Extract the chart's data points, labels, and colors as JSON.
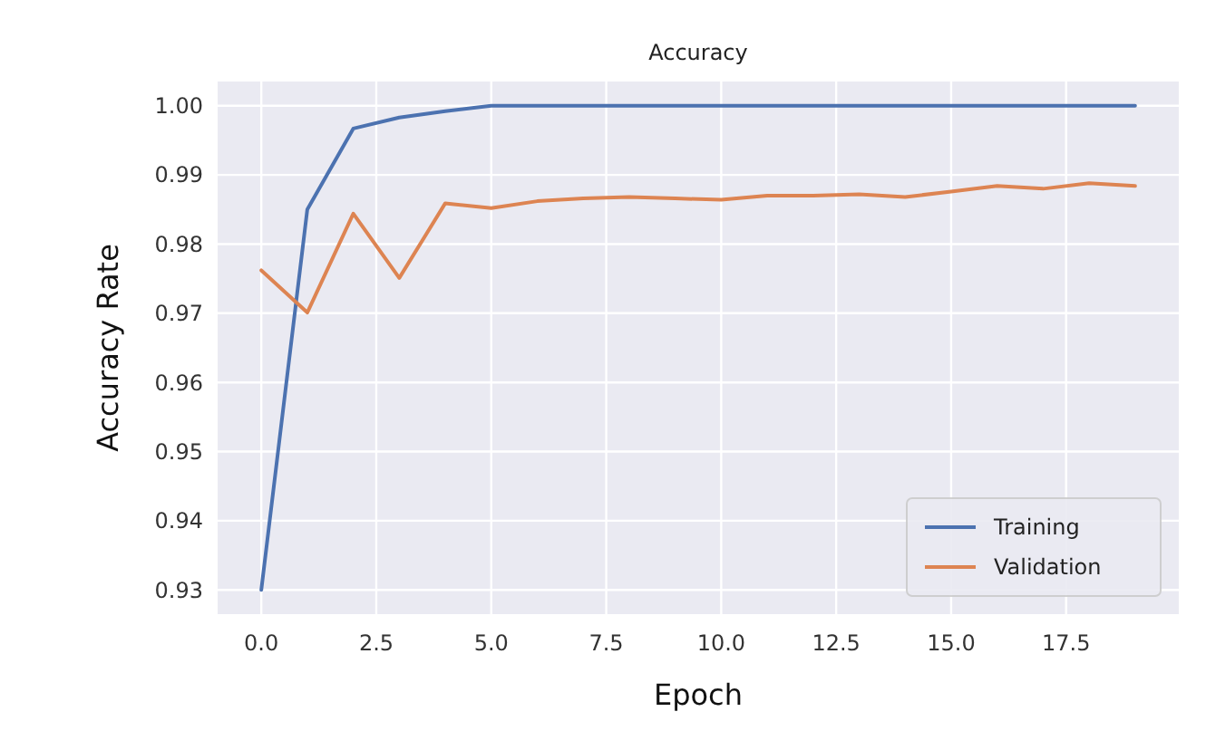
{
  "chart_data": {
    "type": "line",
    "title": "Accuracy",
    "xlabel": "Epoch",
    "ylabel": "Accuracy Rate",
    "x": [
      0,
      1,
      2,
      3,
      4,
      5,
      6,
      7,
      8,
      9,
      10,
      11,
      12,
      13,
      14,
      15,
      16,
      17,
      18,
      19
    ],
    "series": [
      {
        "name": "Training",
        "color": "#4c72b0",
        "values": [
          0.93,
          0.985,
          0.9967,
          0.9983,
          0.9992,
          1.0,
          1.0,
          1.0,
          1.0,
          1.0,
          1.0,
          1.0,
          1.0,
          1.0,
          1.0,
          1.0,
          1.0,
          1.0,
          1.0,
          1.0
        ]
      },
      {
        "name": "Validation",
        "color": "#dd8452",
        "values": [
          0.9762,
          0.9701,
          0.9844,
          0.9751,
          0.9859,
          0.9852,
          0.9862,
          0.9866,
          0.9868,
          0.9866,
          0.9864,
          0.987,
          0.987,
          0.9872,
          0.9868,
          0.9876,
          0.9884,
          0.988,
          0.9888,
          0.9884
        ]
      }
    ],
    "xlim": [
      -0.95,
      19.95
    ],
    "xticks": [
      {
        "value": 0,
        "label": "0.0"
      },
      {
        "value": 2.5,
        "label": "2.5"
      },
      {
        "value": 5,
        "label": "5.0"
      },
      {
        "value": 7.5,
        "label": "7.5"
      },
      {
        "value": 10,
        "label": "10.0"
      },
      {
        "value": 12.5,
        "label": "12.5"
      },
      {
        "value": 15,
        "label": "15.0"
      },
      {
        "value": 17.5,
        "label": "17.5"
      }
    ],
    "ylim": [
      0.9265,
      1.0035
    ],
    "yticks": [
      {
        "value": 0.93,
        "label": "0.93"
      },
      {
        "value": 0.94,
        "label": "0.94"
      },
      {
        "value": 0.95,
        "label": "0.95"
      },
      {
        "value": 0.96,
        "label": "0.96"
      },
      {
        "value": 0.97,
        "label": "0.97"
      },
      {
        "value": 0.98,
        "label": "0.98"
      },
      {
        "value": 0.99,
        "label": "0.99"
      },
      {
        "value": 1.0,
        "label": "1.00"
      }
    ],
    "grid": true,
    "legend": "bottom right",
    "marker": "none",
    "line_style": "solid"
  }
}
